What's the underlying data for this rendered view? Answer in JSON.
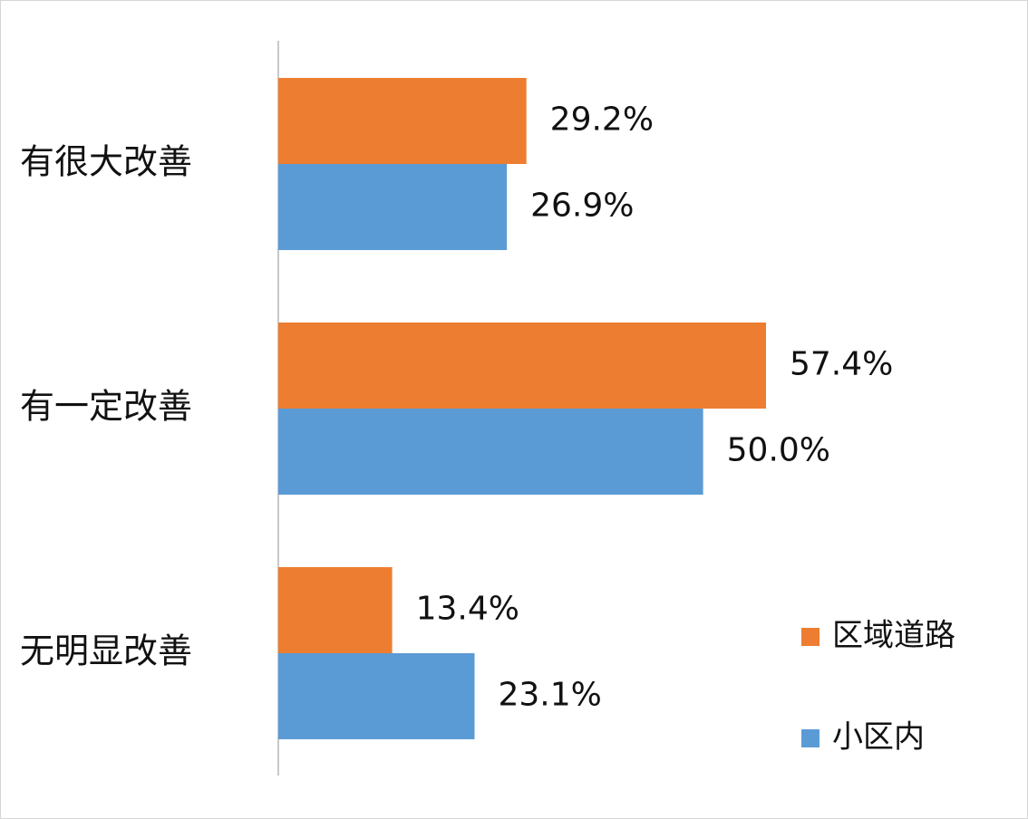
{
  "chart_data": {
    "type": "bar",
    "orientation": "horizontal",
    "categories": [
      "有很大改善",
      "有一定改善",
      "无明显改善"
    ],
    "series": [
      {
        "name": "区域道路",
        "color": "#ED7D31",
        "values": [
          29.2,
          57.4,
          13.4
        ],
        "value_labels": [
          "29.2%",
          "57.4%",
          "13.4%"
        ]
      },
      {
        "name": "小区内",
        "color": "#5B9BD5",
        "values": [
          26.9,
          50.0,
          23.1
        ],
        "value_labels": [
          "26.9%",
          "50.0%",
          "23.1%"
        ]
      }
    ]
  }
}
